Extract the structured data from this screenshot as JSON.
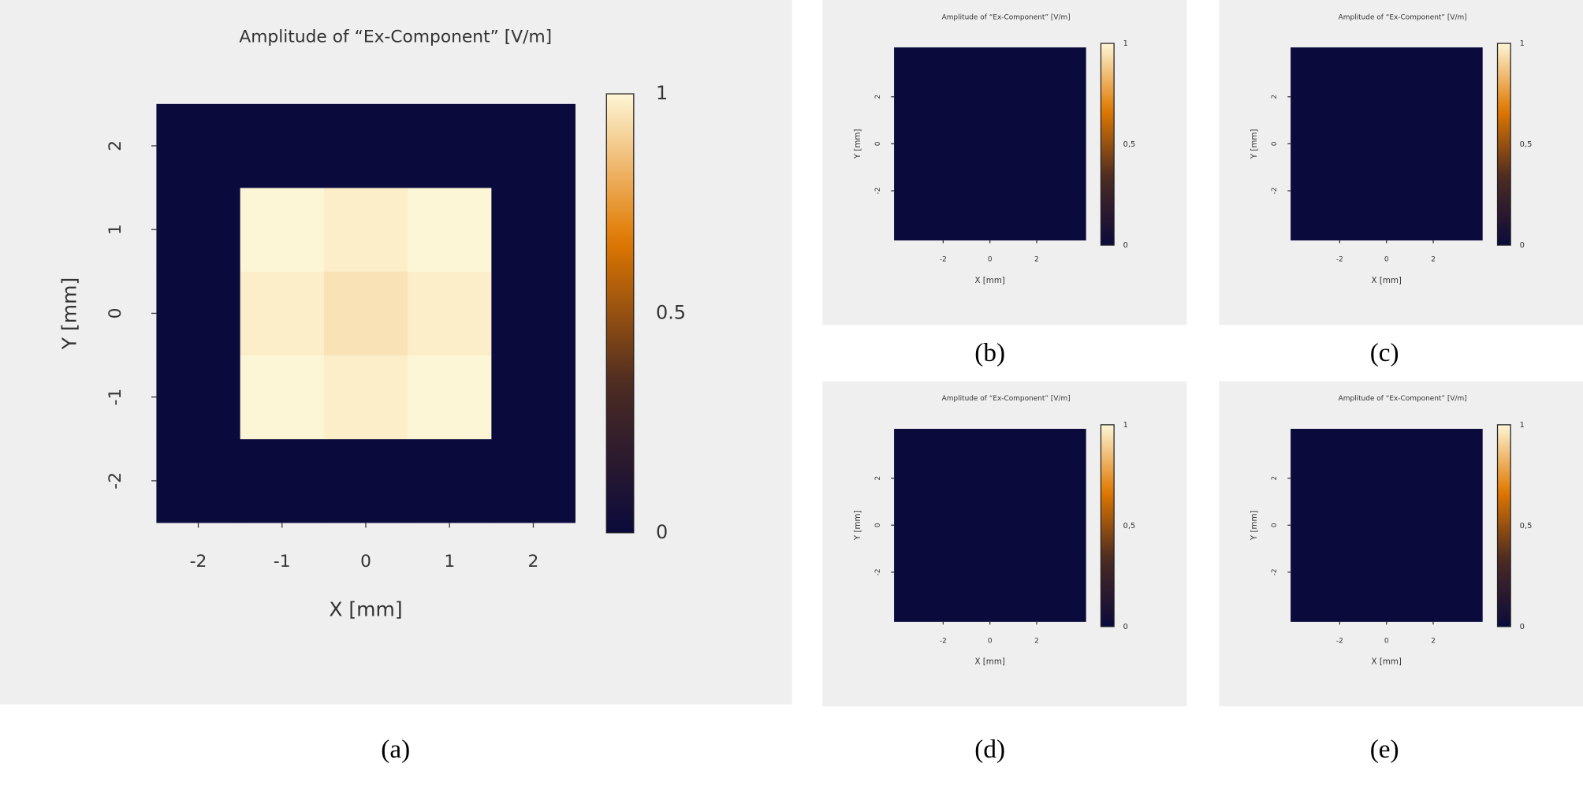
{
  "chart_data": [
    {
      "type": "heatmap",
      "title": "Amplitude of “Ex-Component”  [V/m]",
      "xlabel": "X [mm]",
      "ylabel": "Y [mm]",
      "panel_label": "(a)",
      "xlim": [
        -2.5,
        2.5
      ],
      "ylim": [
        -2.5,
        2.5
      ],
      "xticks": [
        -2,
        -1,
        0,
        1,
        2
      ],
      "yticks": [
        -2,
        -1,
        0,
        1,
        2
      ],
      "x_edges": [
        -2.5,
        -1.5,
        -0.5,
        0.5,
        1.5,
        2.5
      ],
      "y_edges": [
        -2.5,
        -1.5,
        -0.5,
        0.5,
        1.5,
        2.5
      ],
      "z": [
        [
          0,
          0,
          0,
          0,
          0
        ],
        [
          0,
          1,
          0.98,
          1,
          0
        ],
        [
          0,
          0.98,
          0.95,
          0.98,
          0
        ],
        [
          0,
          1,
          0.98,
          1,
          0
        ],
        [
          0,
          0,
          0,
          0,
          0
        ]
      ],
      "clim": [
        0,
        1
      ],
      "cticks": [
        0,
        0.5,
        1
      ],
      "colormap": [
        "#0b0a3c",
        "#4b2a22",
        "#e07800",
        "#fdf6d6"
      ]
    },
    {
      "type": "heatmap",
      "title": "Amplitude of “Ex-Component”  [V/m]",
      "xlabel": "X [mm]",
      "ylabel": "Y [mm]",
      "panel_label": "(b)",
      "xlim": [
        -4.1,
        4.1
      ],
      "ylim": [
        -4.1,
        4.1
      ],
      "xticks": [
        -2,
        0,
        2
      ],
      "yticks": [
        -2,
        0,
        2
      ],
      "x_edges": [
        -4.1,
        4.1
      ],
      "y_edges": [
        -4.1,
        4.1
      ],
      "z": [
        [
          0
        ]
      ],
      "clim": [
        0,
        1
      ],
      "cticks": [
        0,
        {
          "value": 0.5,
          "label": "0,5"
        },
        1
      ],
      "colormap": [
        "#0b0a3c",
        "#4b2a22",
        "#e07800",
        "#fdf6d6"
      ]
    },
    {
      "type": "heatmap",
      "title": "Amplitude of “Ex-Component”  [V/m]",
      "xlabel": "X [mm]",
      "ylabel": "Y [mm]",
      "panel_label": "(c)",
      "xlim": [
        -4.1,
        4.1
      ],
      "ylim": [
        -4.1,
        4.1
      ],
      "xticks": [
        -2,
        0,
        2
      ],
      "yticks": [
        -2,
        0,
        2
      ],
      "x_edges": [
        -4.1,
        4.1
      ],
      "y_edges": [
        -4.1,
        4.1
      ],
      "z": [
        [
          0
        ]
      ],
      "clim": [
        0,
        1
      ],
      "cticks": [
        0,
        {
          "value": 0.5,
          "label": "0,5"
        },
        1
      ],
      "colormap": [
        "#0b0a3c",
        "#4b2a22",
        "#e07800",
        "#fdf6d6"
      ]
    },
    {
      "type": "heatmap",
      "title": "Amplitude of “Ex-Component”  [V/m]",
      "xlabel": "X [mm]",
      "ylabel": "Y [mm]",
      "panel_label": "(d)",
      "xlim": [
        -4.1,
        4.1
      ],
      "ylim": [
        -4.1,
        4.1
      ],
      "xticks": [
        -2,
        0,
        2
      ],
      "yticks": [
        -2,
        0,
        2
      ],
      "x_edges": [
        -4.1,
        4.1
      ],
      "y_edges": [
        -4.1,
        4.1
      ],
      "z": [
        [
          0
        ]
      ],
      "clim": [
        0,
        1
      ],
      "cticks": [
        0,
        {
          "value": 0.5,
          "label": "0,5"
        },
        1
      ],
      "colormap": [
        "#0b0a3c",
        "#4b2a22",
        "#e07800",
        "#fdf6d6"
      ]
    },
    {
      "type": "heatmap",
      "title": "Amplitude of “Ex-Component”  [V/m]",
      "xlabel": "X [mm]",
      "ylabel": "Y [mm]",
      "panel_label": "(e)",
      "xlim": [
        -4.1,
        4.1
      ],
      "ylim": [
        -4.1,
        4.1
      ],
      "xticks": [
        -2,
        0,
        2
      ],
      "yticks": [
        -2,
        0,
        2
      ],
      "x_edges": [
        -4.1,
        4.1
      ],
      "y_edges": [
        -4.1,
        4.1
      ],
      "z": [
        [
          0
        ]
      ],
      "clim": [
        0,
        1
      ],
      "cticks": [
        0,
        {
          "value": 0.5,
          "label": "0,5"
        },
        1
      ],
      "colormap": [
        "#0b0a3c",
        "#4b2a22",
        "#e07800",
        "#fdf6d6"
      ]
    }
  ]
}
